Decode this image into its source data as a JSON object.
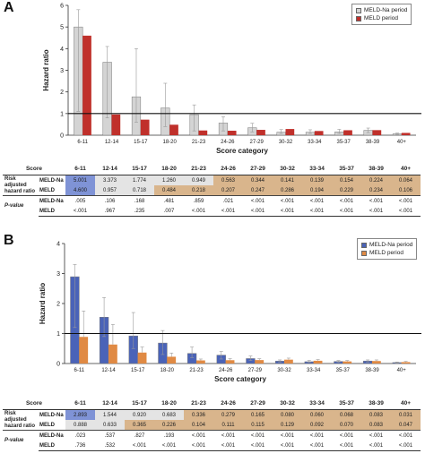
{
  "chart_data": [
    {
      "panel": "A",
      "type": "bar",
      "xlabel": "Score category",
      "ylabel": "Hazard ratio",
      "ylim": [
        0,
        6
      ],
      "yticks": [
        0,
        1,
        2,
        3,
        4,
        5,
        6
      ],
      "reference_line": 1,
      "categories": [
        "6-11",
        "12-14",
        "15-17",
        "18-20",
        "21-23",
        "24-26",
        "27-29",
        "30-32",
        "33-34",
        "35-37",
        "38-39",
        "40+"
      ],
      "series": [
        {
          "name": "MELD-Na period",
          "color": "#d4d4d4",
          "values": [
            5.001,
            3.373,
            1.774,
            1.26,
            0.949,
            0.563,
            0.344,
            0.141,
            0.139,
            0.154,
            0.224,
            0.064
          ],
          "err_upper": [
            5.8,
            4.1,
            4.0,
            2.4,
            1.4,
            0.85,
            0.55,
            0.26,
            0.25,
            0.27,
            0.33,
            0.1
          ],
          "err_lower": [
            1.1,
            0.8,
            0.6,
            0.4,
            0.2,
            0.2,
            0.15,
            0.08,
            0.08,
            0.08,
            0.12,
            0.03
          ]
        },
        {
          "name": "MELD period",
          "color": "#c0302b",
          "values": [
            4.6,
            0.957,
            0.718,
            0.484,
            0.218,
            0.207,
            0.247,
            0.286,
            0.194,
            0.229,
            0.234,
            0.106
          ],
          "err_upper": [],
          "err_lower": []
        }
      ],
      "legend": "top-right",
      "table": {
        "score_header": "Score",
        "row_group_label": "Risk adjusted hazard ratio",
        "pvalue_label": "P-value",
        "rows": [
          {
            "label": "MELD-Na",
            "cells": [
              "5.001",
              "3.373",
              "1.774",
              "1.260",
              "0.949",
              "0.563",
              "0.344",
              "0.141",
              "0.139",
              "0.154",
              "0.224",
              "0.064"
            ]
          },
          {
            "label": "MELD",
            "cells": [
              "4.600",
              "0.957",
              "0.718",
              "0.484",
              "0.218",
              "0.207",
              "0.247",
              "0.286",
              "0.194",
              "0.229",
              "0.234",
              "0.106"
            ]
          }
        ],
        "pvalues": [
          {
            "label": "MELD-Na",
            "cells": [
              ".005",
              ".106",
              ".168",
              ".481",
              ".859",
              ".021",
              "<.001",
              "<.001",
              "<.001",
              "<.001",
              "<.001",
              "<.001"
            ]
          },
          {
            "label": "MELD",
            "cells": [
              "<.001",
              ".967",
              ".235",
              ".007",
              "<.001",
              "<.001",
              "<.001",
              "<.001",
              "<.001",
              "<.001",
              "<.001",
              "<.001"
            ]
          }
        ]
      }
    },
    {
      "panel": "B",
      "type": "bar",
      "xlabel": "Score category",
      "ylabel": "Hazard ratio",
      "ylim": [
        0,
        4
      ],
      "yticks": [
        0,
        1,
        2,
        3,
        4
      ],
      "reference_line": 1,
      "categories": [
        "6-11",
        "12-14",
        "15-17",
        "18-20",
        "21-23",
        "24-26",
        "27-29",
        "30-32",
        "33-34",
        "35-37",
        "38-39",
        "40+"
      ],
      "series": [
        {
          "name": "MELD-Na period",
          "color": "#4a63b8",
          "values": [
            2.893,
            1.544,
            0.92,
            0.683,
            0.336,
            0.279,
            0.165,
            0.08,
            0.06,
            0.068,
            0.083,
            0.031
          ],
          "err_upper": [
            3.3,
            2.2,
            1.7,
            1.1,
            0.55,
            0.4,
            0.25,
            0.12,
            0.1,
            0.1,
            0.12,
            0.05
          ],
          "err_lower": [
            1.2,
            0.9,
            0.5,
            0.3,
            0.2,
            0.15,
            0.1,
            0.05,
            0.04,
            0.04,
            0.05,
            0.02
          ]
        },
        {
          "name": "MELD period",
          "color": "#e08a44",
          "values": [
            0.888,
            0.633,
            0.365,
            0.226,
            0.104,
            0.111,
            0.115,
            0.129,
            0.092,
            0.07,
            0.083,
            0.047
          ],
          "err_upper": [
            1.75,
            1.3,
            0.55,
            0.35,
            0.15,
            0.16,
            0.16,
            0.18,
            0.13,
            0.1,
            0.12,
            0.07
          ],
          "err_lower": [],
          "err_lower_note": ""
        }
      ],
      "legend": "top-right",
      "table": {
        "score_header": "Score",
        "row_group_label": "Risk adjusted hazard ratio",
        "pvalue_label": "P-value",
        "rows": [
          {
            "label": "MELD-Na",
            "cells": [
              "2.893",
              "1.544",
              "0.920",
              "0.683",
              "0.336",
              "0.279",
              "0.165",
              "0.080",
              "0.060",
              "0.068",
              "0.083",
              "0.031"
            ]
          },
          {
            "label": "MELD",
            "cells": [
              "0.888",
              "0.633",
              "0.365",
              "0.226",
              "0.104",
              "0.111",
              "0.115",
              "0.129",
              "0.092",
              "0.070",
              "0.083",
              "0.047"
            ]
          }
        ],
        "pvalues": [
          {
            "label": "MELD-Na",
            "cells": [
              ".023",
              ".537",
              ".827",
              ".193",
              "<.001",
              "<.001",
              "<.001",
              "<.001",
              "<.001",
              "<.001",
              "<.001",
              "<.001"
            ]
          },
          {
            "label": "MELD",
            "cells": [
              ".736",
              ".532",
              "<.001",
              "<.001",
              "<.001",
              "<.001",
              "<.001",
              "<.001",
              "<.001",
              "<.001",
              "<.001",
              "<.001"
            ]
          }
        ]
      }
    }
  ]
}
